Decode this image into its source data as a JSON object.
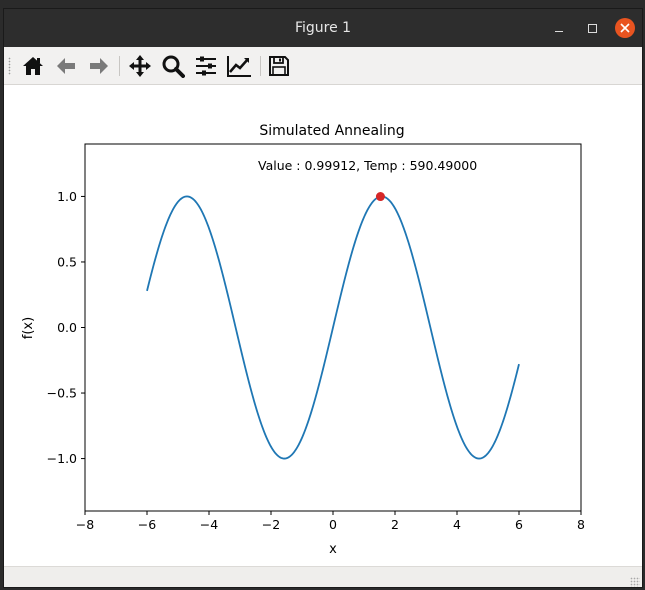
{
  "window": {
    "title": "Figure 1"
  },
  "toolbar": {
    "buttons": [
      {
        "name": "home-icon"
      },
      {
        "name": "back-icon"
      },
      {
        "name": "forward-icon"
      },
      {
        "name": "pan-icon"
      },
      {
        "name": "zoom-icon"
      },
      {
        "name": "configure-subplots-icon"
      },
      {
        "name": "edit-axis-icon"
      },
      {
        "name": "save-icon"
      }
    ]
  },
  "chart_data": {
    "type": "line",
    "title": "Simulated Annealing",
    "xlabel": "x",
    "ylabel": "f(x)",
    "annotation": "Value : 0.99912, Temp : 590.49000",
    "xlim": [
      -8,
      8
    ],
    "ylim": [
      -1.4,
      1.4
    ],
    "xticks": [
      -8,
      -6,
      -4,
      -2,
      0,
      2,
      4,
      6,
      8
    ],
    "xtick_labels": [
      "−8",
      "−6",
      "−4",
      "−2",
      "0",
      "2",
      "4",
      "6",
      "8"
    ],
    "yticks": [
      -1.0,
      -0.5,
      0.0,
      0.5,
      1.0
    ],
    "ytick_labels": [
      "−1.0",
      "−0.5",
      "0.0",
      "0.5",
      "1.0"
    ],
    "series": [
      {
        "function": "sin(x)",
        "x_range": [
          -6,
          6
        ],
        "color": "#1f77b4"
      }
    ],
    "marker": {
      "x": 1.53,
      "y": 0.99912,
      "color": "#d62728"
    },
    "grid": false
  }
}
